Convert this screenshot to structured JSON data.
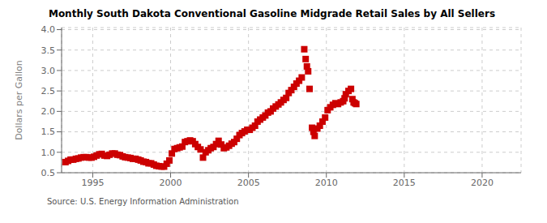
{
  "chart_data": {
    "type": "scatter",
    "title": "Monthly South Dakota Conventional Gasoline Midgrade Retail Sales by All Sellers",
    "ylabel": "Dollars per Gallon",
    "annotations": [
      "Source: U.S. Energy Information Administration"
    ],
    "xlim": [
      1993.0,
      2022.5
    ],
    "ylim": [
      0.5,
      4.05
    ],
    "xticks": [
      1995,
      2000,
      2005,
      2010,
      2015,
      2020
    ],
    "yticks": [
      0.5,
      {
        "value": 1.0,
        "label": "1.0"
      },
      1.5,
      {
        "value": 2.0,
        "label": "2.0"
      },
      2.5,
      {
        "value": 3.0,
        "label": "3.0"
      },
      3.5,
      {
        "value": 4.0,
        "label": "4.0"
      }
    ],
    "grid": true,
    "color": "#cc0000",
    "marker": "square",
    "x": [
      1993.25,
      1993.42,
      1993.58,
      1993.75,
      1993.92,
      1994.08,
      1994.25,
      1994.42,
      1994.58,
      1994.75,
      1994.92,
      1995.08,
      1995.25,
      1995.42,
      1995.58,
      1995.75,
      1995.92,
      1996.08,
      1996.25,
      1996.42,
      1996.58,
      1996.75,
      1996.92,
      1997.08,
      1997.25,
      1997.42,
      1997.58,
      1997.75,
      1997.92,
      1998.08,
      1998.25,
      1998.42,
      1998.58,
      1998.75,
      1998.92,
      1999.08,
      1999.25,
      1999.42,
      1999.58,
      1999.75,
      1999.92,
      2000.08,
      2000.25,
      2000.42,
      2000.58,
      2000.75,
      2000.92,
      2001.08,
      2001.25,
      2001.42,
      2001.58,
      2001.75,
      2001.92,
      2002.08,
      2002.25,
      2002.42,
      2002.58,
      2002.75,
      2002.92,
      2003.08,
      2003.25,
      2003.42,
      2003.58,
      2003.75,
      2003.92,
      2004.08,
      2004.25,
      2004.42,
      2004.58,
      2004.75,
      2004.92,
      2005.08,
      2005.25,
      2005.42,
      2005.58,
      2005.75,
      2005.92,
      2006.08,
      2006.25,
      2006.42,
      2006.58,
      2006.75,
      2006.92,
      2007.08,
      2007.25,
      2007.42,
      2007.58,
      2007.75,
      2007.92,
      2008.08,
      2008.25,
      2008.42,
      2008.58,
      2008.67,
      2008.75,
      2008.83,
      2008.92,
      2009.08,
      2009.17,
      2009.25,
      2009.42,
      2009.58,
      2009.75,
      2009.92,
      2010.08,
      2010.25,
      2010.42,
      2010.58,
      2010.75,
      2010.92,
      2011.08,
      2011.17,
      2011.25,
      2011.42,
      2011.58,
      2011.67,
      2011.75,
      2011.83,
      2011.92
    ],
    "values": [
      0.76,
      0.79,
      0.82,
      0.82,
      0.84,
      0.85,
      0.87,
      0.88,
      0.88,
      0.87,
      0.87,
      0.89,
      0.92,
      0.95,
      0.96,
      0.92,
      0.91,
      0.94,
      0.97,
      0.97,
      0.94,
      0.93,
      0.9,
      0.88,
      0.87,
      0.86,
      0.84,
      0.84,
      0.82,
      0.8,
      0.77,
      0.76,
      0.73,
      0.73,
      0.7,
      0.67,
      0.66,
      0.65,
      0.65,
      0.72,
      0.8,
      0.97,
      1.08,
      1.1,
      1.12,
      1.14,
      1.25,
      1.27,
      1.29,
      1.27,
      1.2,
      1.13,
      1.07,
      0.87,
      1.0,
      1.05,
      1.1,
      1.13,
      1.2,
      1.28,
      1.19,
      1.1,
      1.12,
      1.16,
      1.21,
      1.25,
      1.33,
      1.42,
      1.47,
      1.51,
      1.55,
      1.55,
      1.6,
      1.65,
      1.75,
      1.8,
      1.85,
      1.9,
      1.97,
      2.0,
      2.07,
      2.12,
      2.17,
      2.22,
      2.28,
      2.33,
      2.45,
      2.52,
      2.6,
      2.68,
      2.75,
      2.83,
      3.52,
      3.28,
      3.1,
      2.98,
      2.55,
      1.6,
      1.5,
      1.4,
      1.58,
      1.65,
      1.75,
      1.85,
      2.03,
      2.1,
      2.16,
      2.2,
      2.18,
      2.22,
      2.25,
      2.32,
      2.42,
      2.5,
      2.55,
      2.3,
      2.22,
      2.2,
      2.18
    ]
  }
}
